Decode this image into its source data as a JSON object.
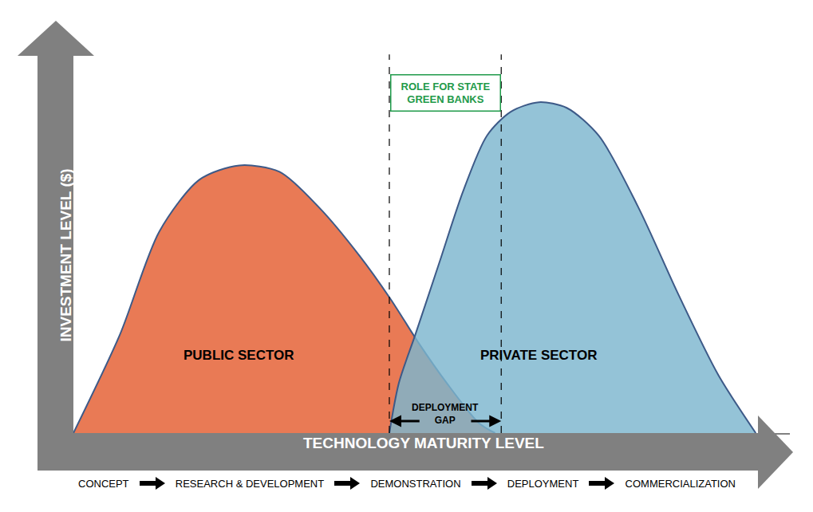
{
  "chart_data": {
    "type": "area",
    "x_label": "TECHNOLOGY MATURITY LEVEL",
    "y_label": "INVESTMENT LEVEL ($)",
    "xlim": [
      0,
      105
    ],
    "ylim": [
      0,
      110
    ],
    "xticks": [],
    "yticks": [],
    "tick_labels": false,
    "grid": false,
    "series": [
      {
        "name": "PUBLIC SECTOR",
        "color": "#e97a55",
        "x": [
          0,
          6.8,
          12.6,
          18.5,
          24.3,
          30.2,
          36.0,
          41.9,
          46.5,
          50.6,
          54.7,
          59.4,
          61.8
        ],
        "values": [
          0,
          27.8,
          57.1,
          71.8,
          75.8,
          74.0,
          63.9,
          50.3,
          37.9,
          25.5,
          14.2,
          2.9,
          0
        ]
      },
      {
        "name": "PRIVATE SECTOR",
        "color": "#7db6ce",
        "x": [
          46.3,
          47.7,
          50.1,
          53.6,
          57.1,
          60.6,
          64.1,
          68.2,
          72.3,
          77.0,
          82.8,
          88.7,
          94.5,
          100
        ],
        "values": [
          0,
          14.2,
          27.8,
          48.1,
          68.4,
          84.2,
          91.0,
          93.7,
          92.1,
          84.2,
          63.9,
          39.1,
          16.5,
          0
        ]
      }
    ],
    "gap": {
      "label": "DEPLOYMENT\nGAP",
      "x": [
        46.3,
        62.7
      ]
    },
    "role_label": "ROLE FOR STATE\nGREEN BANKS",
    "stages": [
      "CONCEPT",
      "RESEARCH & DEVELOPMENT",
      "DEMONSTRATION",
      "DEPLOYMENT",
      "COMMERCIALIZATION"
    ]
  }
}
